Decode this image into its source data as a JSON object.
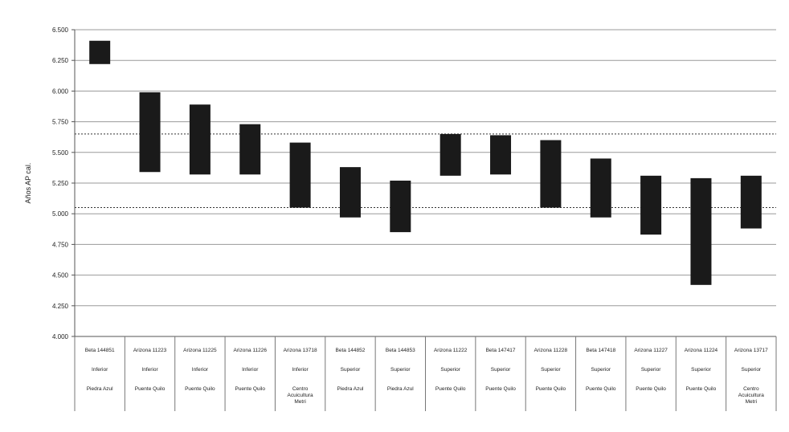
{
  "chart_data": {
    "type": "floating-bar",
    "xlabel": "",
    "ylabel": "Años AP cal.",
    "ylim": [
      4000,
      6500
    ],
    "yticks": [
      4000,
      4250,
      4500,
      4750,
      5000,
      5250,
      5500,
      5750,
      6000,
      6250,
      6500
    ],
    "ytick_labels": [
      "4.000",
      "4.250",
      "4.500",
      "4.750",
      "5.000",
      "5.250",
      "5.500",
      "5.750",
      "6.000",
      "6.250",
      "6.500"
    ],
    "grid": true,
    "reference_lines": [
      5050,
      5650
    ],
    "bar_color": "#1a1a1a",
    "categories": [
      {
        "code": "Beta 144851",
        "level": "Inferior",
        "site": [
          "Piedra Azul"
        ]
      },
      {
        "code": "Arizona 11223",
        "level": "Inferior",
        "site": [
          "Puente Quilo"
        ]
      },
      {
        "code": "Arizona 11225",
        "level": "Inferior",
        "site": [
          "Puente Quilo"
        ]
      },
      {
        "code": "Arizona 11226",
        "level": "Inferior",
        "site": [
          "Puente Quilo"
        ]
      },
      {
        "code": "Arizona 13718",
        "level": "Inferior",
        "site": [
          "Centro",
          "Acuicultura",
          "Metri"
        ]
      },
      {
        "code": "Beta 144852",
        "level": "Superior",
        "site": [
          "Piedra Azul"
        ]
      },
      {
        "code": "Beta 144853",
        "level": "Superior",
        "site": [
          "Piedra Azul"
        ]
      },
      {
        "code": "Arizona 11222",
        "level": "Superior",
        "site": [
          "Puente Quilo"
        ]
      },
      {
        "code": "Beta 147417",
        "level": "Superior",
        "site": [
          "Puente Quilo"
        ]
      },
      {
        "code": "Arizona 11228",
        "level": "Superior",
        "site": [
          "Puente Quilo"
        ]
      },
      {
        "code": "Beta 147418",
        "level": "Superior",
        "site": [
          "Puente Quilo"
        ]
      },
      {
        "code": "Arizona 11227",
        "level": "Superior",
        "site": [
          "Puente Quilo"
        ]
      },
      {
        "code": "Arizona 11224",
        "level": "Superior",
        "site": [
          "Puente Quilo"
        ]
      },
      {
        "code": "Arizona 13717",
        "level": "Superior",
        "site": [
          "Centro",
          "Acuicultura",
          "Metri"
        ]
      }
    ],
    "ranges": [
      [
        6220,
        6410
      ],
      [
        5340,
        5990
      ],
      [
        5320,
        5890
      ],
      [
        5320,
        5730
      ],
      [
        5050,
        5580
      ],
      [
        4970,
        5380
      ],
      [
        4850,
        5270
      ],
      [
        5310,
        5650
      ],
      [
        5320,
        5640
      ],
      [
        5050,
        5600
      ],
      [
        4970,
        5450
      ],
      [
        4830,
        5310
      ],
      [
        4420,
        5290
      ],
      [
        4880,
        5310
      ]
    ]
  }
}
